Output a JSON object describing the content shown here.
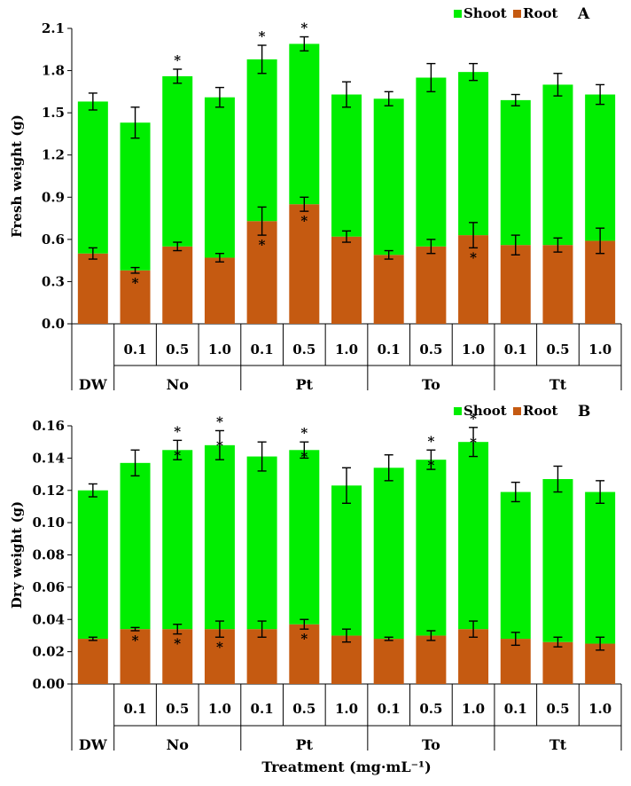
{
  "colors": {
    "shoot": "#00ee00",
    "root": "#c55a11",
    "axis": "#000000"
  },
  "legend": {
    "shoot": "Shoot",
    "root": "Root"
  },
  "categories": [
    {
      "sub": "",
      "group": "DW"
    },
    {
      "sub": "0.1",
      "group": "No"
    },
    {
      "sub": "0.5",
      "group": "No"
    },
    {
      "sub": "1.0",
      "group": "No"
    },
    {
      "sub": "0.1",
      "group": "Pt"
    },
    {
      "sub": "0.5",
      "group": "Pt"
    },
    {
      "sub": "1.0",
      "group": "Pt"
    },
    {
      "sub": "0.1",
      "group": "To"
    },
    {
      "sub": "0.5",
      "group": "To"
    },
    {
      "sub": "1.0",
      "group": "To"
    },
    {
      "sub": "0.1",
      "group": "Tt"
    },
    {
      "sub": "0.5",
      "group": "Tt"
    },
    {
      "sub": "1.0",
      "group": "Tt"
    }
  ],
  "groups": [
    {
      "label": "DW",
      "span": [
        0,
        0
      ]
    },
    {
      "label": "No",
      "span": [
        1,
        3
      ]
    },
    {
      "label": "Pt",
      "span": [
        4,
        6
      ]
    },
    {
      "label": "To",
      "span": [
        7,
        9
      ]
    },
    {
      "label": "Tt",
      "span": [
        10,
        12
      ]
    }
  ],
  "xlabel": "Treatment (mg·mL⁻¹)",
  "chart_data": [
    {
      "type": "bar",
      "stacked": true,
      "panel": "A",
      "ylabel": "Fresh weight (g)",
      "ylim": [
        0,
        2.1
      ],
      "yticks": [
        "0.0",
        "0.3",
        "0.6",
        "0.9",
        "1.2",
        "1.5",
        "1.8",
        "2.1"
      ],
      "yticks_values": [
        0,
        0.3,
        0.6,
        0.9,
        1.2,
        1.5,
        1.8,
        2.1
      ],
      "legend_position": "top-right",
      "series": [
        {
          "name": "Root",
          "values": [
            0.5,
            0.38,
            0.55,
            0.47,
            0.73,
            0.85,
            0.62,
            0.49,
            0.55,
            0.63,
            0.56,
            0.56,
            0.59
          ],
          "errors": [
            0.04,
            0.02,
            0.03,
            0.03,
            0.1,
            0.05,
            0.04,
            0.03,
            0.05,
            0.09,
            0.07,
            0.05,
            0.09
          ],
          "significant": [
            false,
            true,
            false,
            false,
            true,
            true,
            false,
            false,
            false,
            true,
            false,
            false,
            false
          ]
        },
        {
          "name": "Shoot",
          "values": [
            1.08,
            1.05,
            1.21,
            1.14,
            1.15,
            1.14,
            1.01,
            1.11,
            1.2,
            1.16,
            1.03,
            1.14,
            1.04
          ],
          "totals": [
            1.58,
            1.43,
            1.76,
            1.61,
            1.88,
            1.99,
            1.63,
            1.6,
            1.75,
            1.79,
            1.59,
            1.7,
            1.63
          ],
          "errors": [
            0.06,
            0.11,
            0.05,
            0.07,
            0.1,
            0.05,
            0.09,
            0.05,
            0.1,
            0.06,
            0.04,
            0.08,
            0.07
          ],
          "significant": [
            false,
            false,
            true,
            false,
            true,
            true,
            false,
            false,
            false,
            false,
            false,
            false,
            false
          ]
        }
      ]
    },
    {
      "type": "bar",
      "stacked": true,
      "panel": "B",
      "ylabel": "Dry weight (g)",
      "ylim": [
        0,
        0.16
      ],
      "yticks": [
        "0.00",
        "0.02",
        "0.04",
        "0.06",
        "0.08",
        "0.10",
        "0.12",
        "0.14",
        "0.16"
      ],
      "yticks_values": [
        0,
        0.02,
        0.04,
        0.06,
        0.08,
        0.1,
        0.12,
        0.14,
        0.16
      ],
      "legend_position": "top-right",
      "series": [
        {
          "name": "Root",
          "values": [
            0.028,
            0.034,
            0.034,
            0.034,
            0.034,
            0.037,
            0.03,
            0.028,
            0.03,
            0.034,
            0.028,
            0.026,
            0.025
          ],
          "errors": [
            0.001,
            0.001,
            0.003,
            0.005,
            0.005,
            0.003,
            0.004,
            0.001,
            0.003,
            0.005,
            0.004,
            0.003,
            0.004
          ],
          "significant": [
            false,
            true,
            true,
            true,
            false,
            true,
            false,
            false,
            false,
            false,
            false,
            false,
            false
          ]
        },
        {
          "name": "Shoot",
          "values": [
            0.092,
            0.103,
            0.111,
            0.114,
            0.107,
            0.108,
            0.093,
            0.106,
            0.109,
            0.116,
            0.091,
            0.101,
            0.094
          ],
          "totals": [
            0.12,
            0.137,
            0.145,
            0.148,
            0.141,
            0.145,
            0.123,
            0.134,
            0.139,
            0.15,
            0.119,
            0.127,
            0.119
          ],
          "errors": [
            0.004,
            0.008,
            0.006,
            0.009,
            0.009,
            0.005,
            0.011,
            0.008,
            0.006,
            0.009,
            0.006,
            0.008,
            0.007
          ],
          "significant": [
            false,
            false,
            true,
            true,
            false,
            true,
            false,
            false,
            true,
            true,
            false,
            false,
            false
          ],
          "significant_root_marker": [
            false,
            false,
            true,
            true,
            false,
            true,
            false,
            false,
            true,
            true,
            false,
            false,
            false
          ]
        }
      ]
    }
  ],
  "significance_marker": "*"
}
